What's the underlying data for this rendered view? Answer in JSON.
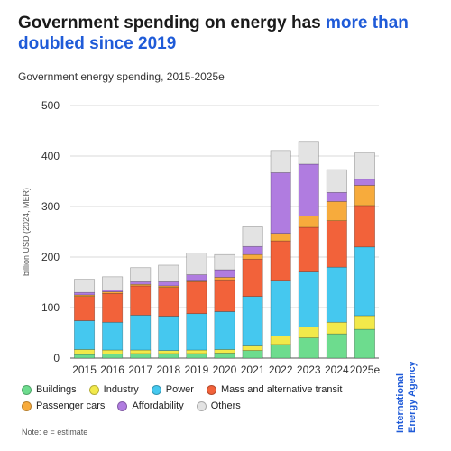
{
  "header": {
    "title_part1": "Government spending on energy has ",
    "title_highlight": "more than doubled since 2019"
  },
  "brand": {
    "line1": "International",
    "line2": "Energy Agency"
  },
  "note": "Note: e = estimate",
  "colors": {
    "Buildings": "#6ddc8e",
    "Industry": "#f2e94a",
    "Power": "#45c8ef",
    "Mass and alternative transit": "#f2623a",
    "Passenger cars": "#f7ab3c",
    "Affordability": "#b07ce0",
    "Others": "#e3e3e3",
    "highlight": "#1f5bd8"
  },
  "chart_data": {
    "type": "bar",
    "stacked": true,
    "title": "Government energy spending, 2015-2025e",
    "ylabel": "billion USD (2024, MER)",
    "xlabel": "",
    "ylim": [
      0,
      500
    ],
    "yticks": [
      0,
      100,
      200,
      300,
      400,
      500
    ],
    "grid": true,
    "legend_position": "bottom",
    "categories": [
      "2015",
      "2016",
      "2017",
      "2018",
      "2019",
      "2020",
      "2021",
      "2022",
      "2023",
      "2024",
      "2025e"
    ],
    "series": [
      {
        "name": "Buildings",
        "values": [
          7,
          8,
          9,
          9,
          9,
          10,
          15,
          27,
          40,
          48,
          57
        ]
      },
      {
        "name": "Industry",
        "values": [
          10,
          8,
          7,
          6,
          7,
          7,
          9,
          17,
          22,
          23,
          27
        ]
      },
      {
        "name": "Power",
        "values": [
          57,
          55,
          69,
          68,
          72,
          75,
          98,
          110,
          110,
          109,
          136
        ]
      },
      {
        "name": "Mass and alternative transit",
        "values": [
          48,
          57,
          58,
          57,
          63,
          63,
          74,
          78,
          87,
          92,
          82
        ]
      },
      {
        "name": "Passenger cars",
        "values": [
          3,
          3,
          3,
          3,
          3,
          5,
          9,
          15,
          22,
          38,
          40
        ]
      },
      {
        "name": "Affordability",
        "values": [
          5,
          4,
          5,
          8,
          11,
          15,
          16,
          120,
          103,
          18,
          12
        ]
      },
      {
        "name": "Others",
        "values": [
          26,
          26,
          28,
          33,
          43,
          30,
          39,
          44,
          45,
          45,
          52
        ]
      }
    ]
  }
}
